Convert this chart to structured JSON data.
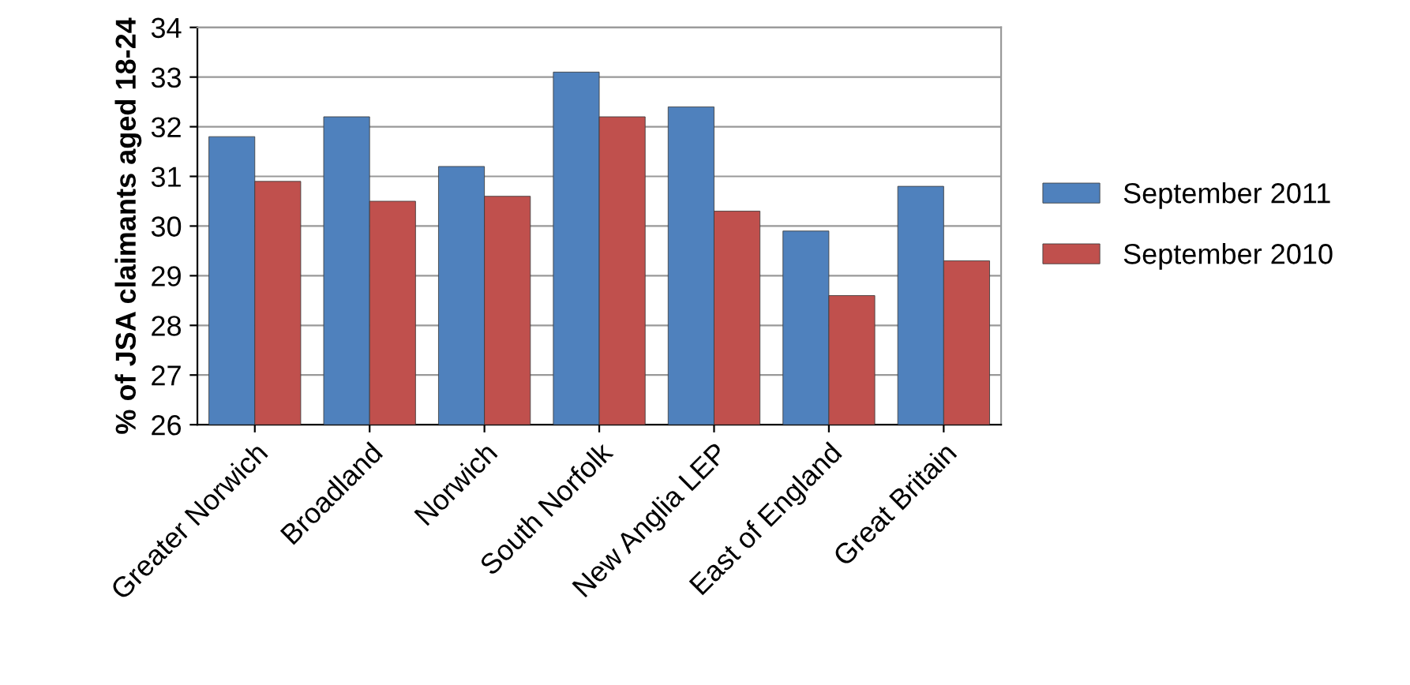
{
  "chart_data": {
    "type": "bar",
    "ylabel": "% of JSA claimants aged 18-24",
    "categories": [
      "Greater Norwich",
      "Broadland",
      "Norwich",
      "South Norfolk",
      "New Anglia LEP",
      "East of England",
      "Great Britain"
    ],
    "series": [
      {
        "name": "September 2011",
        "color": "#4f81bd",
        "values": [
          31.8,
          32.2,
          31.2,
          33.1,
          32.4,
          29.9,
          30.8
        ]
      },
      {
        "name": "September 2010",
        "color": "#c0504d",
        "values": [
          30.9,
          30.5,
          30.6,
          32.2,
          30.3,
          28.6,
          29.3
        ]
      }
    ],
    "ylim": [
      26,
      34
    ],
    "yticks": [
      26,
      27,
      28,
      29,
      30,
      31,
      32,
      33,
      34
    ],
    "grid": "y",
    "legend": "right"
  }
}
